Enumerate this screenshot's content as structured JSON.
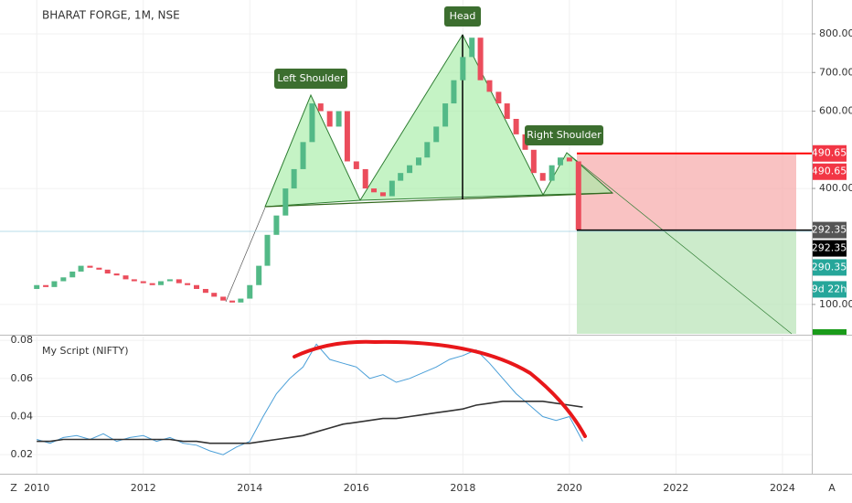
{
  "chart_data": [
    {
      "type": "candlestick",
      "title": "BHARAT FORGE, 1M, NSE",
      "annotations": [
        "Left Shoulder",
        "Head",
        "Right Shoulder"
      ],
      "x": [
        2010,
        2010.17,
        2010.33,
        2010.5,
        2010.67,
        2010.83,
        2011,
        2011.17,
        2011.33,
        2011.5,
        2011.67,
        2011.83,
        2012,
        2012.17,
        2012.33,
        2012.5,
        2012.67,
        2012.83,
        2013,
        2013.17,
        2013.33,
        2013.5,
        2013.67,
        2013.83,
        2014,
        2014.17,
        2014.33,
        2014.5,
        2014.67,
        2014.83,
        2015,
        2015.17,
        2015.33,
        2015.5,
        2015.67,
        2015.83,
        2016,
        2016.17,
        2016.33,
        2016.5,
        2016.67,
        2016.83,
        2017,
        2017.17,
        2017.33,
        2017.5,
        2017.67,
        2017.83,
        2018,
        2018.17,
        2018.33,
        2018.5,
        2018.67,
        2018.83,
        2019,
        2019.17,
        2019.33,
        2019.5,
        2019.67,
        2019.83,
        2020,
        2020.17
      ],
      "open": [
        140,
        150,
        145,
        160,
        170,
        185,
        200,
        195,
        190,
        180,
        175,
        165,
        160,
        155,
        150,
        160,
        165,
        155,
        150,
        140,
        130,
        120,
        110,
        105,
        115,
        150,
        200,
        280,
        330,
        400,
        450,
        520,
        620,
        600,
        560,
        600,
        470,
        450,
        400,
        390,
        380,
        420,
        440,
        460,
        480,
        520,
        560,
        620,
        680,
        740,
        790,
        680,
        650,
        620,
        580,
        540,
        500,
        440,
        420,
        460,
        480,
        470
      ],
      "close": [
        150,
        145,
        160,
        170,
        185,
        200,
        195,
        190,
        180,
        175,
        165,
        160,
        155,
        150,
        160,
        165,
        155,
        150,
        140,
        130,
        120,
        110,
        105,
        115,
        150,
        200,
        280,
        330,
        400,
        450,
        520,
        620,
        600,
        560,
        600,
        470,
        450,
        400,
        390,
        380,
        420,
        440,
        460,
        480,
        520,
        560,
        620,
        680,
        740,
        790,
        680,
        650,
        620,
        580,
        540,
        500,
        440,
        420,
        460,
        480,
        470,
        292.35
      ],
      "up_color": "#53b987",
      "down_color": "#eb4d5c",
      "stop_level": 490.65,
      "entry_level": 292.35,
      "last_price": 290.35,
      "countdown": "9d 22h",
      "xlim": [
        2009.31,
        2024.55
      ],
      "xticks": [
        {
          "value": 2010,
          "label": "2010"
        },
        2012,
        2014,
        2016,
        2018,
        2020,
        2022,
        2024
      ],
      "ylim": [
        24,
        887.5
      ],
      "yticks": [
        {
          "value": 100,
          "label": "100.00"
        },
        {
          "value": 400,
          "label": "400.00"
        },
        {
          "value": 600,
          "label": "600.00"
        },
        {
          "value": 700,
          "label": "700.00"
        },
        {
          "value": 800,
          "label": "800.00"
        }
      ],
      "grid": true
    },
    {
      "type": "line",
      "title": "My Script (NIFTY)",
      "x": [
        2010,
        2010.25,
        2010.5,
        2010.75,
        2011,
        2011.25,
        2011.5,
        2011.75,
        2012,
        2012.25,
        2012.5,
        2012.75,
        2013,
        2013.25,
        2013.5,
        2013.75,
        2014,
        2014.25,
        2014.5,
        2014.75,
        2015,
        2015.25,
        2015.5,
        2015.75,
        2016,
        2016.25,
        2016.5,
        2016.75,
        2017,
        2017.25,
        2017.5,
        2017.75,
        2018,
        2018.25,
        2018.5,
        2018.75,
        2019,
        2019.25,
        2019.5,
        2019.75,
        2020,
        2020.25
      ],
      "series": [
        {
          "color": "#4a9fd8",
          "values": [
            0.028,
            0.026,
            0.029,
            0.03,
            0.028,
            0.031,
            0.027,
            0.029,
            0.03,
            0.027,
            0.029,
            0.026,
            0.025,
            0.022,
            0.02,
            0.024,
            0.027,
            0.04,
            0.052,
            0.06,
            0.066,
            0.078,
            0.07,
            0.068,
            0.066,
            0.06,
            0.062,
            0.058,
            0.06,
            0.063,
            0.066,
            0.07,
            0.072,
            0.075,
            0.068,
            0.06,
            0.052,
            0.046,
            0.04,
            0.038,
            0.04,
            0.027
          ]
        },
        {
          "color": "#333333",
          "values": [
            0.027,
            0.027,
            0.028,
            0.028,
            0.028,
            0.028,
            0.028,
            0.028,
            0.028,
            0.028,
            0.028,
            0.027,
            0.027,
            0.026,
            0.026,
            0.026,
            0.026,
            0.027,
            0.028,
            0.029,
            0.03,
            0.032,
            0.034,
            0.036,
            0.037,
            0.038,
            0.039,
            0.039,
            0.04,
            0.041,
            0.042,
            0.043,
            0.044,
            0.046,
            0.047,
            0.048,
            0.048,
            0.048,
            0.048,
            0.047,
            0.046,
            0.045
          ]
        }
      ],
      "xlim": [
        2009.31,
        2024.55
      ],
      "ylim": [
        0.01,
        0.082
      ],
      "yticks": [
        0.02,
        0.04,
        0.06,
        0.08
      ],
      "grid": true
    }
  ]
}
